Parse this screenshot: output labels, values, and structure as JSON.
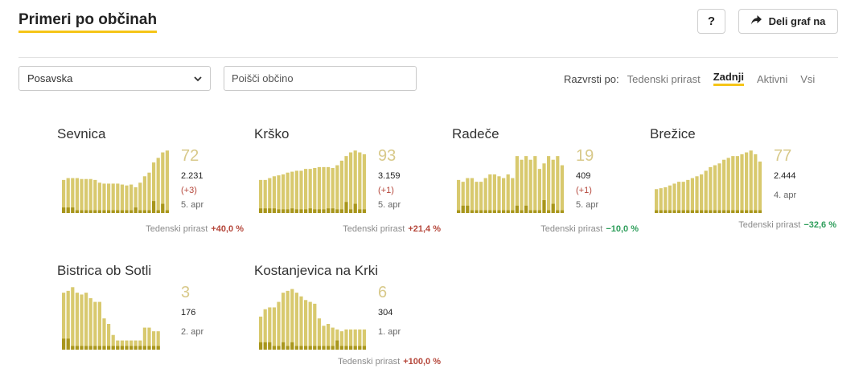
{
  "header": {
    "title": "Primeri po občinah",
    "help_label": "?",
    "share_label": "Deli graf na",
    "share_icon": "share-arrow-icon"
  },
  "filters": {
    "region_value": "Posavska",
    "search_placeholder": "Poišči občino"
  },
  "sort": {
    "label": "Razvrsti po:",
    "options": [
      "Tedenski prirast",
      "Zadnji",
      "Aktivni",
      "Vsi"
    ],
    "active": "Zadnji"
  },
  "colors": {
    "bar_light": "#d8c96e",
    "bar_dark": "#a8961c",
    "accent": "#f5c518",
    "positive_change": "#b5473b",
    "negative_change": "#2e9e5b"
  },
  "weekly_label": "Tedenski prirast",
  "cards": [
    {
      "name": "Sevnica",
      "active": "72",
      "total": "2.231",
      "delta": "(+3)",
      "date": "5. apr",
      "weekly": "+40,0 %",
      "trend": "pos",
      "bars": [
        36,
        38,
        38,
        38,
        37,
        37,
        37,
        36,
        33,
        32,
        32,
        32,
        32,
        31,
        30,
        31,
        28,
        33,
        40,
        44,
        55,
        60,
        66,
        68
      ],
      "dark": [
        6,
        6,
        6,
        3,
        3,
        3,
        3,
        3,
        3,
        3,
        3,
        3,
        3,
        3,
        3,
        3,
        6,
        3,
        3,
        3,
        13,
        3,
        10,
        3
      ]
    },
    {
      "name": "Krško",
      "active": "93",
      "total": "3.159",
      "delta": "(+1)",
      "date": "5. apr",
      "weekly": "+21,4 %",
      "trend": "pos",
      "bars": [
        36,
        36,
        38,
        40,
        41,
        42,
        44,
        45,
        46,
        46,
        48,
        48,
        49,
        50,
        50,
        50,
        49,
        52,
        57,
        62,
        66,
        68,
        66,
        64
      ],
      "dark": [
        5,
        5,
        5,
        5,
        4,
        4,
        4,
        5,
        4,
        4,
        4,
        5,
        4,
        4,
        4,
        5,
        5,
        4,
        4,
        12,
        4,
        10,
        4,
        4
      ]
    },
    {
      "name": "Radeče",
      "active": "19",
      "total": "409",
      "delta": "(+1)",
      "date": "5. apr",
      "weekly": "−10,0 %",
      "trend": "neg",
      "bars": [
        36,
        34,
        38,
        38,
        34,
        34,
        38,
        42,
        42,
        40,
        38,
        42,
        38,
        62,
        58,
        62,
        58,
        62,
        48,
        54,
        62,
        58,
        62,
        52
      ],
      "dark": [
        3,
        8,
        8,
        3,
        3,
        3,
        3,
        3,
        3,
        3,
        3,
        3,
        3,
        8,
        3,
        8,
        3,
        3,
        3,
        14,
        3,
        10,
        3,
        3
      ]
    },
    {
      "name": "Brežice",
      "active": "77",
      "total": "2.444",
      "delta": "",
      "date": "4. apr",
      "weekly": "−32,6 %",
      "trend": "neg",
      "bars": [
        26,
        27,
        28,
        30,
        32,
        34,
        34,
        36,
        38,
        40,
        42,
        46,
        50,
        52,
        54,
        58,
        60,
        62,
        62,
        64,
        66,
        68,
        64,
        56
      ],
      "dark": [
        3,
        3,
        3,
        3,
        3,
        3,
        3,
        3,
        3,
        3,
        3,
        3,
        3,
        3,
        3,
        3,
        3,
        3,
        3,
        3,
        3,
        3,
        3,
        3
      ]
    },
    {
      "name": "Bistrica ob Sotli",
      "active": "3",
      "total": "176",
      "delta": "",
      "date": "2. apr",
      "weekly": "",
      "trend": "pos",
      "bars": [
        62,
        64,
        68,
        62,
        60,
        62,
        56,
        52,
        52,
        34,
        28,
        16,
        10,
        10,
        10,
        10,
        10,
        10,
        24,
        24,
        20,
        20
      ],
      "dark": [
        12,
        12,
        4,
        4,
        4,
        4,
        4,
        4,
        4,
        4,
        4,
        4,
        4,
        4,
        4,
        4,
        4,
        4,
        4,
        4,
        4,
        4
      ]
    },
    {
      "name": "Kostanjevica na Krki",
      "active": "6",
      "total": "304",
      "delta": "",
      "date": "1. apr",
      "weekly": "+100,0 %",
      "trend": "pos",
      "bars": [
        36,
        44,
        46,
        46,
        52,
        62,
        64,
        66,
        62,
        58,
        54,
        52,
        50,
        34,
        26,
        28,
        24,
        22,
        20,
        22,
        22,
        22,
        22,
        22
      ],
      "dark": [
        8,
        8,
        8,
        4,
        4,
        8,
        4,
        8,
        4,
        4,
        4,
        4,
        4,
        4,
        4,
        4,
        4,
        10,
        4,
        4,
        4,
        4,
        4,
        4
      ]
    }
  ]
}
